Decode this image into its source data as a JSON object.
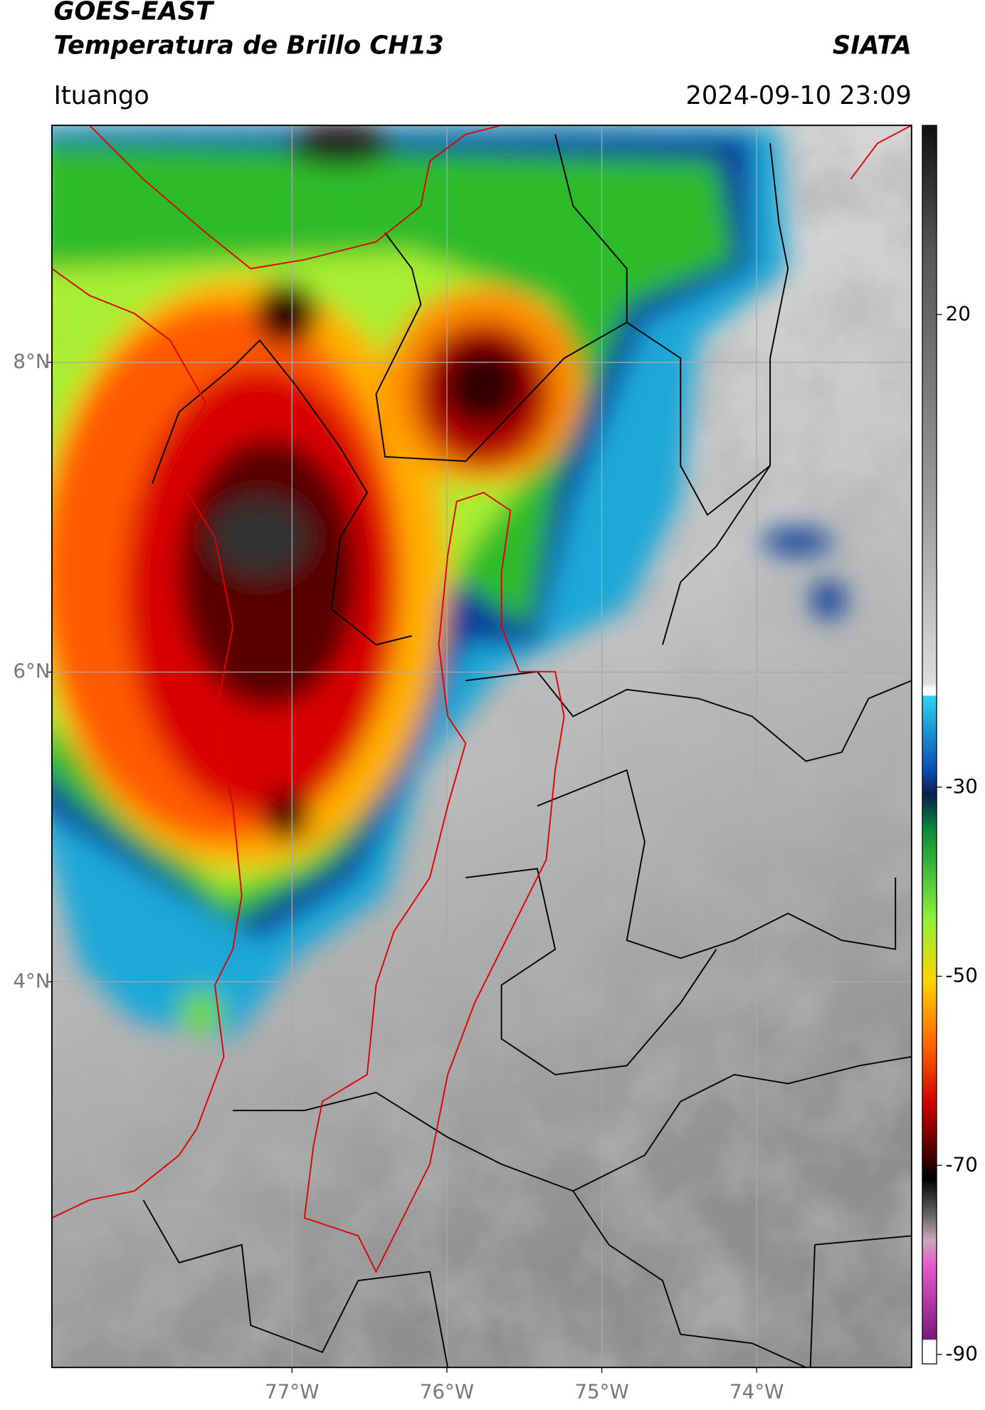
{
  "header": {
    "title": "GOES-EAST",
    "subtitle": "Temperatura de Brillo CH13",
    "brand": "SIATA",
    "location": "Ituango",
    "datetime": "2024-09-10 23:09"
  },
  "map": {
    "xlim": [
      -78.55,
      -73.0
    ],
    "ylim": [
      1.51,
      9.53
    ],
    "xticks": [
      {
        "value": -77,
        "label": "77°W"
      },
      {
        "value": -76,
        "label": "76°W"
      },
      {
        "value": -75,
        "label": "75°W"
      },
      {
        "value": -74,
        "label": "74°W"
      }
    ],
    "yticks": [
      {
        "value": 8,
        "label": "8°N"
      },
      {
        "value": 6,
        "label": "6°N"
      },
      {
        "value": 4,
        "label": "4°N"
      }
    ],
    "grid": true
  },
  "colorbar": {
    "lim": [
      -91,
      40
    ],
    "ticks": [
      20,
      -30,
      -50,
      -70,
      -90
    ]
  }
}
